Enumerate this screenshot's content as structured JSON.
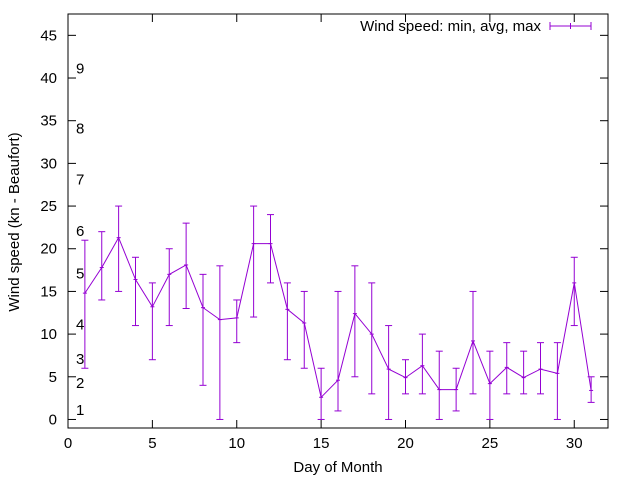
{
  "chart_data": {
    "type": "line",
    "title": "",
    "xlabel": "Day of Month",
    "ylabel": "Wind speed (kn - Beaufort)",
    "xlim": [
      0,
      32
    ],
    "ylim": [
      -1,
      47.5
    ],
    "x_ticks": [
      0,
      5,
      10,
      15,
      20,
      25,
      30
    ],
    "y_ticks": [
      0,
      5,
      10,
      15,
      20,
      25,
      30,
      35,
      40,
      45
    ],
    "legend": {
      "label": "Wind speed: min, avg, max",
      "position": "top-right"
    },
    "color": "#9400d3",
    "series": [
      {
        "name": "Wind speed: min, avg, max",
        "x": [
          1,
          2,
          3,
          4,
          5,
          6,
          7,
          8,
          9,
          10,
          11,
          12,
          13,
          14,
          15,
          16,
          17,
          18,
          19,
          20,
          21,
          22,
          23,
          24,
          25,
          26,
          27,
          28,
          29,
          30,
          31
        ],
        "avg": [
          14.8,
          17.8,
          21.3,
          16.4,
          13.2,
          17.0,
          18.1,
          13.1,
          11.7,
          11.9,
          20.6,
          20.6,
          12.9,
          11.3,
          2.6,
          4.6,
          12.4,
          10.0,
          5.9,
          4.9,
          6.3,
          3.5,
          3.5,
          9.2,
          4.2,
          6.1,
          4.9,
          5.9,
          5.4,
          16.0,
          3.4
        ],
        "min": [
          6,
          14,
          15,
          11,
          7,
          11,
          13,
          4,
          0,
          9,
          12,
          16,
          7,
          6,
          0,
          1,
          5,
          3,
          0,
          3,
          3,
          0,
          1,
          3,
          0,
          3,
          3,
          3,
          0,
          11,
          2
        ],
        "max": [
          21,
          22,
          25,
          19,
          16,
          20,
          23,
          17,
          18,
          14,
          25,
          24,
          16,
          15,
          6,
          15,
          18,
          16,
          11,
          7,
          10,
          8,
          6,
          15,
          8,
          9,
          8,
          9,
          9,
          19,
          5
        ]
      }
    ],
    "beaufort_labels": [
      {
        "label": "1",
        "y": 1.1
      },
      {
        "label": "2",
        "y": 4.3
      },
      {
        "label": "3",
        "y": 7.1
      },
      {
        "label": "4",
        "y": 11.1
      },
      {
        "label": "5",
        "y": 17.1
      },
      {
        "label": "6",
        "y": 22.1
      },
      {
        "label": "7",
        "y": 28.1
      },
      {
        "label": "8",
        "y": 34.1
      },
      {
        "label": "9",
        "y": 41.1
      }
    ]
  }
}
